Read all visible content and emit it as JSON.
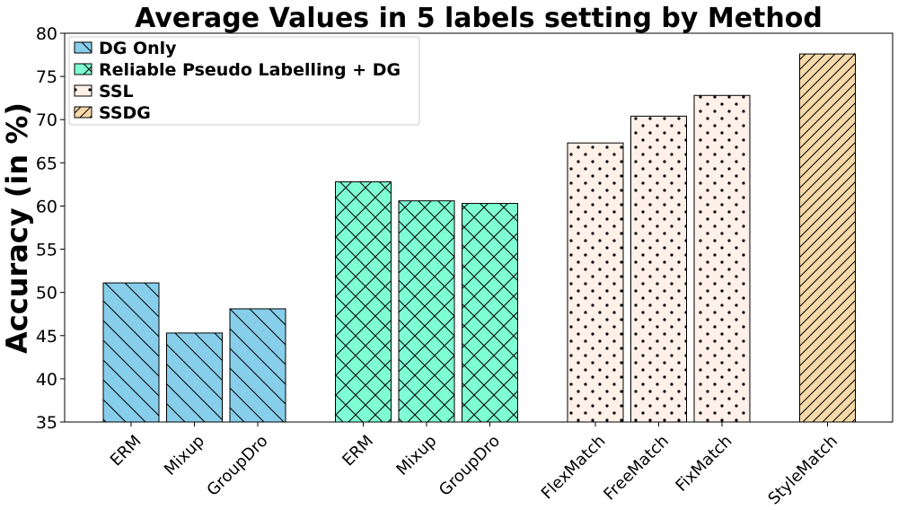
{
  "chart_data": {
    "type": "bar",
    "title": "Average Values in 5 labels setting by Method",
    "xlabel": "",
    "ylabel": "Accuracy (in %)",
    "ylim": [
      35,
      80
    ],
    "yticks": [
      35,
      40,
      45,
      50,
      55,
      60,
      65,
      70,
      75,
      80
    ],
    "grid": false,
    "legend_position": "top-left",
    "groups": [
      {
        "name": "DG Only",
        "color": "#87ceeb",
        "hatch": "backslash",
        "categories": [
          "ERM",
          "Mixup",
          "GroupDro"
        ],
        "values": [
          51.1,
          45.3,
          48.1
        ]
      },
      {
        "name": "Reliable Pseudo Labelling + DG",
        "color": "#7fffd4",
        "hatch": "cross",
        "categories": [
          "ERM",
          "Mixup",
          "GroupDro"
        ],
        "values": [
          62.8,
          60.6,
          60.3
        ]
      },
      {
        "name": "SSL",
        "color": "#fff0e8",
        "hatch": "dots",
        "categories": [
          "FlexMatch",
          "FreeMatch",
          "FixMatch"
        ],
        "values": [
          67.3,
          70.4,
          72.8
        ]
      },
      {
        "name": "SSDG",
        "color": "#f5d9a8",
        "hatch": "slash",
        "categories": [
          "StyleMatch"
        ],
        "values": [
          77.6
        ]
      }
    ]
  }
}
